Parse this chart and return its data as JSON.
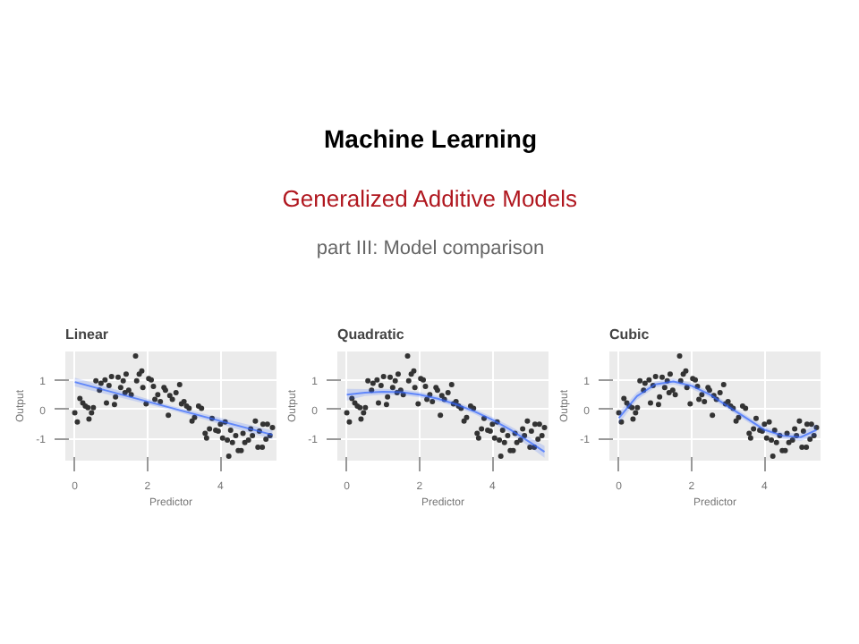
{
  "chart_data": [
    {
      "type": "other",
      "title": "Machine Learning",
      "subtitle": "Generalized Additive Models",
      "annotations": [
        "part III: Model comparison"
      ]
    },
    {
      "type": "scatter",
      "title": "Linear",
      "xlabel": "Predictor",
      "ylabel": "Output",
      "xlim": [
        -0.26,
        5.54
      ],
      "ylim": [
        -1.75,
        1.97
      ],
      "xticks": [
        0,
        2,
        4
      ],
      "yticks": [
        -1,
        0,
        1
      ],
      "grid": true,
      "series": [
        {
          "type": "scatter",
          "marker": "circle",
          "color": "#333333",
          "x": [
            0,
            0.07,
            0.14,
            0.22,
            0.29,
            0.36,
            0.39,
            0.46,
            0.51,
            0.58,
            0.68,
            0.72,
            0.83,
            0.87,
            0.94,
            1.01,
            1.09,
            1.12,
            1.19,
            1.26,
            1.33,
            1.38,
            1.41,
            1.48,
            1.55,
            1.67,
            1.7,
            1.77,
            1.84,
            1.87,
            1.96,
            2.03,
            2.1,
            2.16,
            2.2,
            2.28,
            2.35,
            2.45,
            2.49,
            2.57,
            2.61,
            2.68,
            2.78,
            2.88,
            2.93,
            3.0,
            3.07,
            3.14,
            3.22,
            3.29,
            3.4,
            3.48,
            3.58,
            3.62,
            3.7,
            3.77,
            3.87,
            3.94,
            4.0,
            4.06,
            4.13,
            4.19,
            4.23,
            4.28,
            4.33,
            4.42,
            4.49,
            4.57,
            4.62,
            4.67,
            4.77,
            4.83,
            4.88,
            4.96,
            5.03,
            5.07,
            5.15,
            5.17,
            5.25,
            5.29,
            5.36,
            5.43
          ],
          "values": [
            -0.12,
            -0.43,
            0.37,
            0.22,
            0.11,
            0.06,
            -0.33,
            -0.12,
            0.06,
            0.97,
            0.65,
            0.89,
            1.0,
            0.22,
            0.81,
            1.12,
            0.16,
            0.42,
            1.09,
            0.74,
            0.97,
            0.57,
            1.2,
            0.65,
            0.5,
            1.82,
            0.97,
            1.2,
            1.31,
            0.74,
            0.19,
            1.05,
            1.0,
            0.78,
            0.34,
            0.5,
            0.26,
            0.74,
            0.65,
            -0.2,
            0.47,
            0.34,
            0.57,
            0.84,
            0.19,
            0.26,
            0.11,
            0.03,
            -0.4,
            -0.28,
            0.11,
            0.03,
            -0.82,
            -0.98,
            -0.67,
            -0.31,
            -0.71,
            -0.74,
            -0.51,
            -0.98,
            -0.43,
            -1.05,
            -1.6,
            -0.71,
            -1.13,
            -0.9,
            -1.41,
            -1.41,
            -0.82,
            -1.13,
            -1.05,
            -0.67,
            -0.9,
            -0.4,
            -1.29,
            -0.74,
            -1.29,
            -0.51,
            -1.02,
            -0.51,
            -0.9,
            -0.62
          ]
        },
        {
          "type": "line",
          "color": "#3366ff",
          "x": [
            0,
            2.7,
            5.43
          ],
          "values": [
            0.93,
            0.03,
            -0.87
          ],
          "lower": [
            0.78,
            -0.04,
            -1.02
          ],
          "upper": [
            1.08,
            0.1,
            -0.72
          ]
        }
      ]
    },
    {
      "type": "scatter",
      "title": "Quadratic",
      "xlabel": "Predictor",
      "ylabel": "Output",
      "xlim": [
        -0.26,
        5.54
      ],
      "ylim": [
        -1.75,
        1.97
      ],
      "xticks": [
        0,
        2,
        4
      ],
      "yticks": [
        -1,
        0,
        1
      ],
      "grid": true,
      "series": [
        {
          "type": "scatter",
          "marker": "circle",
          "color": "#333333",
          "x": [
            0,
            0.07,
            0.14,
            0.22,
            0.29,
            0.36,
            0.39,
            0.46,
            0.51,
            0.58,
            0.68,
            0.72,
            0.83,
            0.87,
            0.94,
            1.01,
            1.09,
            1.12,
            1.19,
            1.26,
            1.33,
            1.38,
            1.41,
            1.48,
            1.55,
            1.67,
            1.7,
            1.77,
            1.84,
            1.87,
            1.96,
            2.03,
            2.1,
            2.16,
            2.2,
            2.28,
            2.35,
            2.45,
            2.49,
            2.57,
            2.61,
            2.68,
            2.78,
            2.88,
            2.93,
            3.0,
            3.07,
            3.14,
            3.22,
            3.29,
            3.4,
            3.48,
            3.58,
            3.62,
            3.7,
            3.77,
            3.87,
            3.94,
            4.0,
            4.06,
            4.13,
            4.19,
            4.23,
            4.28,
            4.33,
            4.42,
            4.49,
            4.57,
            4.62,
            4.67,
            4.77,
            4.83,
            4.88,
            4.96,
            5.03,
            5.07,
            5.15,
            5.17,
            5.25,
            5.29,
            5.36,
            5.43
          ],
          "values": [
            -0.12,
            -0.43,
            0.37,
            0.22,
            0.11,
            0.06,
            -0.33,
            -0.12,
            0.06,
            0.97,
            0.65,
            0.89,
            1.0,
            0.22,
            0.81,
            1.12,
            0.16,
            0.42,
            1.09,
            0.74,
            0.97,
            0.57,
            1.2,
            0.65,
            0.5,
            1.82,
            0.97,
            1.2,
            1.31,
            0.74,
            0.19,
            1.05,
            1.0,
            0.78,
            0.34,
            0.5,
            0.26,
            0.74,
            0.65,
            -0.2,
            0.47,
            0.34,
            0.57,
            0.84,
            0.19,
            0.26,
            0.11,
            0.03,
            -0.4,
            -0.28,
            0.11,
            0.03,
            -0.82,
            -0.98,
            -0.67,
            -0.31,
            -0.71,
            -0.74,
            -0.51,
            -0.98,
            -0.43,
            -1.05,
            -1.6,
            -0.71,
            -1.13,
            -0.9,
            -1.41,
            -1.41,
            -0.82,
            -1.13,
            -1.05,
            -0.67,
            -0.9,
            -0.4,
            -1.29,
            -0.74,
            -1.29,
            -0.51,
            -1.02,
            -0.51,
            -0.9,
            -0.62
          ]
        },
        {
          "type": "line",
          "color": "#3366ff",
          "x": [
            0,
            0.5,
            1,
            1.5,
            2,
            2.5,
            3,
            3.5,
            4,
            4.5,
            5,
            5.43
          ],
          "values": [
            0.5,
            0.57,
            0.6,
            0.58,
            0.5,
            0.36,
            0.17,
            -0.07,
            -0.36,
            -0.7,
            -1.1,
            -1.45
          ],
          "lower": [
            0.3,
            0.45,
            0.5,
            0.48,
            0.41,
            0.27,
            0.08,
            -0.16,
            -0.46,
            -0.82,
            -1.26,
            -1.65
          ],
          "upper": [
            0.7,
            0.69,
            0.7,
            0.68,
            0.59,
            0.45,
            0.26,
            0.02,
            -0.26,
            -0.58,
            -0.94,
            -1.25
          ]
        }
      ]
    },
    {
      "type": "scatter",
      "title": "Cubic",
      "xlabel": "Predictor",
      "ylabel": "Output",
      "xlim": [
        -0.26,
        5.54
      ],
      "ylim": [
        -1.75,
        1.97
      ],
      "xticks": [
        0,
        2,
        4
      ],
      "yticks": [
        -1,
        0,
        1
      ],
      "grid": true,
      "series": [
        {
          "type": "scatter",
          "marker": "circle",
          "color": "#333333",
          "x": [
            0,
            0.07,
            0.14,
            0.22,
            0.29,
            0.36,
            0.39,
            0.46,
            0.51,
            0.58,
            0.68,
            0.72,
            0.83,
            0.87,
            0.94,
            1.01,
            1.09,
            1.12,
            1.19,
            1.26,
            1.33,
            1.38,
            1.41,
            1.48,
            1.55,
            1.67,
            1.7,
            1.77,
            1.84,
            1.87,
            1.96,
            2.03,
            2.1,
            2.16,
            2.2,
            2.28,
            2.35,
            2.45,
            2.49,
            2.57,
            2.61,
            2.68,
            2.78,
            2.88,
            2.93,
            3.0,
            3.07,
            3.14,
            3.22,
            3.29,
            3.4,
            3.48,
            3.58,
            3.62,
            3.7,
            3.77,
            3.87,
            3.94,
            4.0,
            4.06,
            4.13,
            4.19,
            4.23,
            4.28,
            4.33,
            4.42,
            4.49,
            4.57,
            4.62,
            4.67,
            4.77,
            4.83,
            4.88,
            4.96,
            5.03,
            5.07,
            5.15,
            5.17,
            5.25,
            5.29,
            5.36,
            5.43
          ],
          "values": [
            -0.12,
            -0.43,
            0.37,
            0.22,
            0.11,
            0.06,
            -0.33,
            -0.12,
            0.06,
            0.97,
            0.65,
            0.89,
            1.0,
            0.22,
            0.81,
            1.12,
            0.16,
            0.42,
            1.09,
            0.74,
            0.97,
            0.57,
            1.2,
            0.65,
            0.5,
            1.82,
            0.97,
            1.2,
            1.31,
            0.74,
            0.19,
            1.05,
            1.0,
            0.78,
            0.34,
            0.5,
            0.26,
            0.74,
            0.65,
            -0.2,
            0.47,
            0.34,
            0.57,
            0.84,
            0.19,
            0.26,
            0.11,
            0.03,
            -0.4,
            -0.28,
            0.11,
            0.03,
            -0.82,
            -0.98,
            -0.67,
            -0.31,
            -0.71,
            -0.74,
            -0.51,
            -0.98,
            -0.43,
            -1.05,
            -1.6,
            -0.71,
            -1.13,
            -0.9,
            -1.41,
            -1.41,
            -0.82,
            -1.13,
            -1.05,
            -0.67,
            -0.9,
            -0.4,
            -1.29,
            -0.74,
            -1.29,
            -0.51,
            -1.02,
            -0.51,
            -0.9,
            -0.62
          ]
        },
        {
          "type": "line",
          "color": "#3366ff",
          "x": [
            0,
            0.5,
            1,
            1.5,
            2,
            2.5,
            3,
            3.5,
            4,
            4.5,
            5,
            5.43
          ],
          "values": [
            -0.3,
            0.45,
            0.85,
            0.95,
            0.8,
            0.5,
            0.1,
            -0.3,
            -0.7,
            -0.9,
            -0.95,
            -0.7
          ],
          "lower": [
            -0.5,
            0.32,
            0.75,
            0.85,
            0.7,
            0.4,
            0.0,
            -0.4,
            -0.8,
            -1.0,
            -1.07,
            -0.9
          ],
          "upper": [
            -0.1,
            0.58,
            0.95,
            1.05,
            0.9,
            0.6,
            0.2,
            -0.2,
            -0.6,
            -0.8,
            -0.83,
            -0.5
          ]
        }
      ]
    }
  ]
}
